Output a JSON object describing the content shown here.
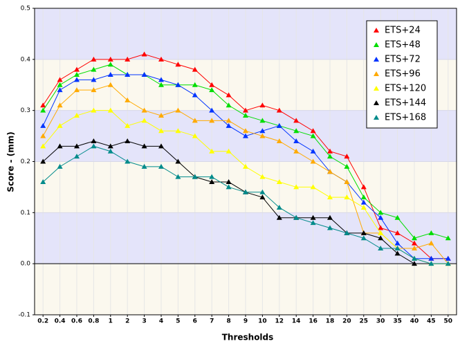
{
  "chart_data": {
    "type": "line",
    "x_label": "Thresholds",
    "y_label": "Score - (mm)",
    "categories": [
      "0.2",
      "0.4",
      "0.6",
      "0.8",
      "1",
      "2",
      "3",
      "4",
      "5",
      "6",
      "7",
      "8",
      "9",
      "10",
      "12",
      "14",
      "16",
      "18",
      "20",
      "25",
      "30",
      "35",
      "40",
      "45",
      "50"
    ],
    "series": [
      {
        "name": "ETS+24",
        "color": "#ff0000",
        "values": [
          0.31,
          0.36,
          0.38,
          0.4,
          0.4,
          0.4,
          0.41,
          0.4,
          0.39,
          0.38,
          0.35,
          0.33,
          0.3,
          0.31,
          0.3,
          0.28,
          0.26,
          0.22,
          0.21,
          0.15,
          0.07,
          0.06,
          0.04,
          0.01,
          0.01
        ]
      },
      {
        "name": "ETS+48",
        "color": "#00dd00",
        "values": [
          0.3,
          0.35,
          0.37,
          0.38,
          0.39,
          0.37,
          0.37,
          0.35,
          0.35,
          0.35,
          0.34,
          0.31,
          0.29,
          0.28,
          0.27,
          0.26,
          0.25,
          0.21,
          0.19,
          0.13,
          0.1,
          0.09,
          0.05,
          0.06,
          0.05
        ]
      },
      {
        "name": "ETS+72",
        "color": "#0033ff",
        "values": [
          0.27,
          0.34,
          0.36,
          0.36,
          0.37,
          0.37,
          0.37,
          0.36,
          0.35,
          0.33,
          0.3,
          0.27,
          0.25,
          0.26,
          0.27,
          0.24,
          0.22,
          0.18,
          0.16,
          0.12,
          0.09,
          0.04,
          0.01,
          0.01,
          0.01
        ]
      },
      {
        "name": "ETS+96",
        "color": "#ffaa00",
        "values": [
          0.25,
          0.31,
          0.34,
          0.34,
          0.35,
          0.32,
          0.3,
          0.29,
          0.3,
          0.28,
          0.28,
          0.28,
          0.26,
          0.25,
          0.24,
          0.22,
          0.2,
          0.18,
          0.16,
          0.06,
          0.06,
          0.03,
          0.03,
          0.04,
          0.0
        ]
      },
      {
        "name": "ETS+120",
        "color": "#ffff00",
        "values": [
          0.23,
          0.27,
          0.29,
          0.3,
          0.3,
          0.27,
          0.28,
          0.26,
          0.26,
          0.25,
          0.22,
          0.22,
          0.19,
          0.17,
          0.16,
          0.15,
          0.15,
          0.13,
          0.13,
          0.11,
          0.06,
          0.03,
          0.01,
          0.0,
          0.0
        ]
      },
      {
        "name": "ETS+144",
        "color": "#000000",
        "values": [
          0.2,
          0.23,
          0.23,
          0.24,
          0.23,
          0.24,
          0.23,
          0.23,
          0.2,
          0.17,
          0.16,
          0.16,
          0.14,
          0.13,
          0.09,
          0.09,
          0.09,
          0.09,
          0.06,
          0.06,
          0.05,
          0.02,
          0.0,
          null,
          null
        ]
      },
      {
        "name": "ETS+168",
        "color": "#008b8b",
        "values": [
          0.16,
          0.19,
          0.21,
          0.23,
          0.22,
          0.2,
          0.19,
          0.19,
          0.17,
          0.17,
          0.17,
          0.15,
          0.14,
          0.14,
          0.11,
          0.09,
          0.08,
          0.07,
          0.06,
          0.05,
          0.03,
          0.03,
          0.01,
          0.0,
          0.0
        ]
      }
    ],
    "ylim": [
      -0.1,
      0.5
    ],
    "yticks": [
      -0.1,
      {
        "value": 0,
        "label": "0.0"
      },
      0.1,
      0.2,
      0.3,
      0.4,
      0.5
    ],
    "grid": true,
    "legend": "upper right"
  }
}
